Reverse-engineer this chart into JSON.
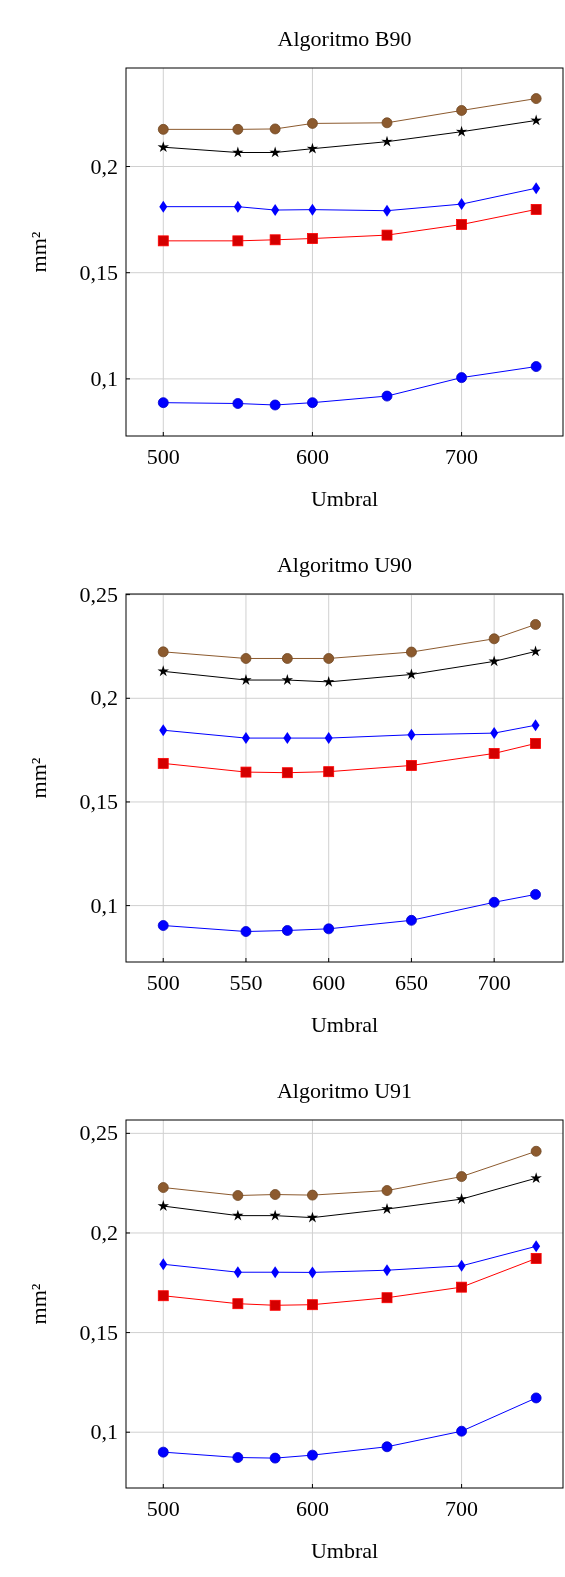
{
  "chart_data": [
    {
      "type": "line",
      "title": "Algoritmo B90",
      "xlabel": "Umbral",
      "ylabel": "mm²",
      "x": [
        500,
        550,
        575,
        600,
        650,
        700,
        750
      ],
      "xlim": [
        475,
        768
      ],
      "xticks": [
        500,
        600,
        700
      ],
      "ylim": [
        0.0731,
        0.2464
      ],
      "yticks": [
        {
          "value": 0.1,
          "label": "0,1"
        },
        {
          "value": 0.15,
          "label": "0,15"
        },
        {
          "value": 0.2,
          "label": "0,2"
        }
      ],
      "grid": true,
      "line_style": "solid",
      "series": [
        {
          "color": "#8c5a2e",
          "marker": "circle",
          "values": [
            0.2175,
            0.2175,
            0.2177,
            0.2203,
            0.2206,
            0.2264,
            0.232
          ]
        },
        {
          "color": "#000000",
          "marker": "star",
          "values": [
            0.2091,
            0.2066,
            0.2066,
            0.2084,
            0.2117,
            0.2164,
            0.2217
          ]
        },
        {
          "color": "#0000ff",
          "marker": "diamond",
          "values": [
            0.1811,
            0.1811,
            0.1795,
            0.1797,
            0.1792,
            0.1823,
            0.1898
          ]
        },
        {
          "color": "#ff0000",
          "marker": "square",
          "values": [
            0.165,
            0.165,
            0.1655,
            0.1661,
            0.1677,
            0.1727,
            0.1798
          ]
        },
        {
          "color": "#0000ff",
          "marker": "circle",
          "values": [
            0.0888,
            0.0884,
            0.0877,
            0.0888,
            0.0919,
            0.1006,
            0.1058
          ]
        }
      ]
    },
    {
      "type": "line",
      "title": "Algoritmo U90",
      "xlabel": "Umbral",
      "ylabel": "mm²",
      "x": [
        500,
        550,
        575,
        600,
        650,
        700,
        725
      ],
      "xlim": [
        477.5,
        741.6
      ],
      "xticks": [
        500,
        550,
        600,
        650,
        700
      ],
      "ylim": [
        0.0728,
        0.2503
      ],
      "yticks": [
        {
          "value": 0.1,
          "label": "0,1"
        },
        {
          "value": 0.15,
          "label": "0,15"
        },
        {
          "value": 0.2,
          "label": "0,2"
        },
        {
          "value": 0.25,
          "label": "0,25"
        }
      ],
      "grid": true,
      "line_style": "solid",
      "series": [
        {
          "color": "#8c5a2e",
          "marker": "circle",
          "values": [
            0.2224,
            0.2192,
            0.2192,
            0.2192,
            0.2223,
            0.2287,
            0.2356
          ]
        },
        {
          "color": "#000000",
          "marker": "star",
          "values": [
            0.213,
            0.2088,
            0.2088,
            0.2079,
            0.2115,
            0.2178,
            0.2226
          ]
        },
        {
          "color": "#0000ff",
          "marker": "diamond",
          "values": [
            0.1846,
            0.1808,
            0.1808,
            0.1808,
            0.1824,
            0.1832,
            0.187
          ]
        },
        {
          "color": "#ff0000",
          "marker": "square",
          "values": [
            0.1686,
            0.1644,
            0.1641,
            0.1646,
            0.1676,
            0.1734,
            0.1782
          ]
        },
        {
          "color": "#0000ff",
          "marker": "circle",
          "values": [
            0.0904,
            0.0875,
            0.088,
            0.0888,
            0.0929,
            0.1016,
            0.1054
          ]
        }
      ]
    },
    {
      "type": "line",
      "title": "Algoritmo U91",
      "xlabel": "Umbral",
      "ylabel": "mm²",
      "x": [
        500,
        550,
        575,
        600,
        650,
        700,
        750
      ],
      "xlim": [
        475,
        768
      ],
      "xticks": [
        500,
        600,
        700
      ],
      "ylim": [
        0.072,
        0.2567
      ],
      "yticks": [
        {
          "value": 0.1,
          "label": "0,1"
        },
        {
          "value": 0.15,
          "label": "0,15"
        },
        {
          "value": 0.2,
          "label": "0,2"
        },
        {
          "value": 0.25,
          "label": "0,25"
        }
      ],
      "grid": true,
      "line_style": "solid",
      "series": [
        {
          "color": "#8c5a2e",
          "marker": "circle",
          "values": [
            0.2228,
            0.2188,
            0.2193,
            0.219,
            0.2213,
            0.2283,
            0.241
          ]
        },
        {
          "color": "#000000",
          "marker": "star",
          "values": [
            0.2135,
            0.2087,
            0.2087,
            0.2077,
            0.212,
            0.217,
            0.2275
          ]
        },
        {
          "color": "#0000ff",
          "marker": "diamond",
          "values": [
            0.1843,
            0.1803,
            0.1803,
            0.1802,
            0.1813,
            0.1835,
            0.1933
          ]
        },
        {
          "color": "#ff0000",
          "marker": "square",
          "values": [
            0.1685,
            0.1645,
            0.1637,
            0.164,
            0.1675,
            0.1728,
            0.1872
          ]
        },
        {
          "color": "#0000ff",
          "marker": "circle",
          "values": [
            0.09,
            0.0873,
            0.087,
            0.0885,
            0.0927,
            0.1005,
            0.1172
          ]
        }
      ]
    }
  ]
}
